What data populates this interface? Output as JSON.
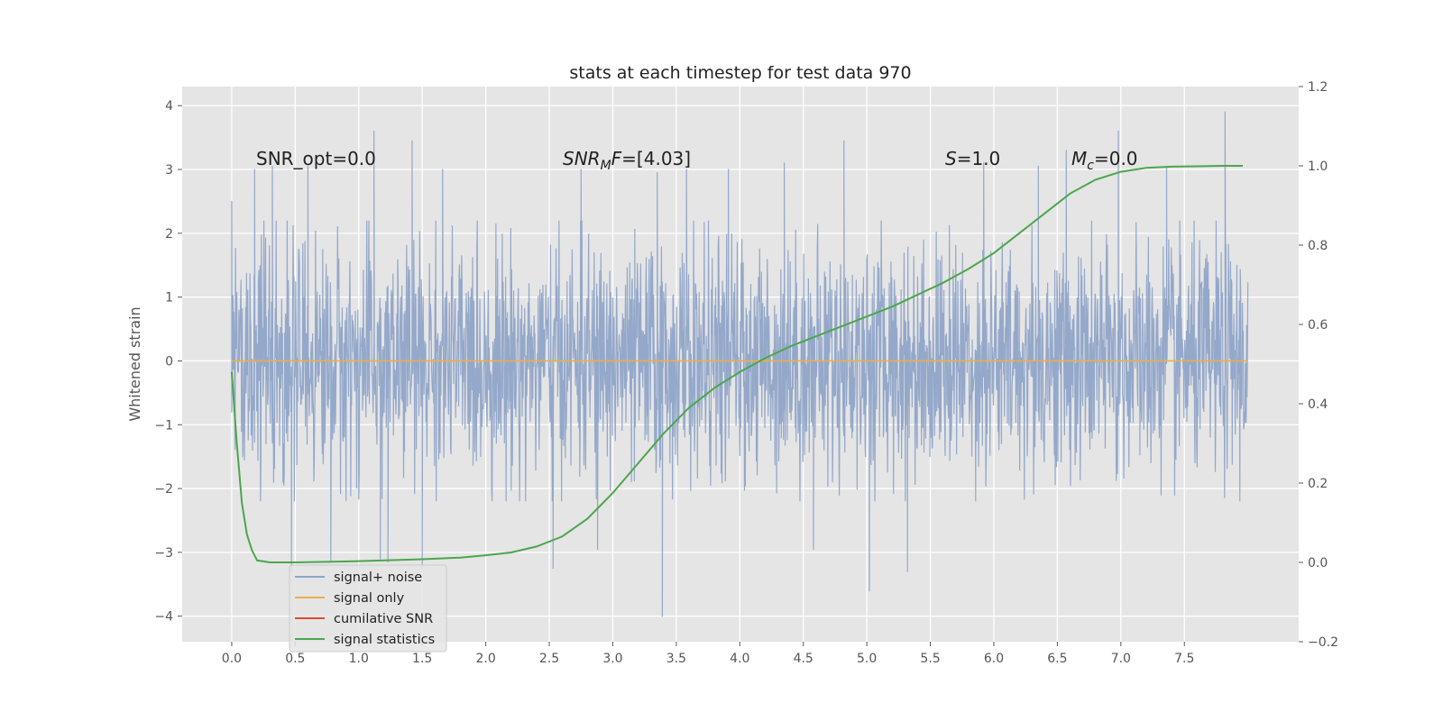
{
  "chart_data": {
    "type": "line",
    "title": "stats at each timestep for test data 970",
    "xlabel": "",
    "ylabel": "Whitened strain",
    "y2label": "",
    "xlim": [
      -0.39,
      8.4
    ],
    "ylim": [
      -4.4,
      4.3
    ],
    "y2lim": [
      -0.2,
      1.2
    ],
    "x_ticks": [
      0.0,
      0.5,
      1.0,
      1.5,
      2.0,
      2.5,
      3.0,
      3.5,
      4.0,
      4.5,
      5.0,
      5.5,
      6.0,
      6.5,
      7.0,
      7.5
    ],
    "x_tick_labels": [
      "0.0",
      "0.5",
      "1.0",
      "1.5",
      "2.0",
      "2.5",
      "3.0",
      "3.5",
      "4.0",
      "4.5",
      "5.0",
      "5.5",
      "6.0",
      "6.5",
      "7.0",
      "7.5"
    ],
    "y_ticks": [
      -4,
      -3,
      -2,
      -1,
      0,
      1,
      2,
      3,
      4
    ],
    "y_tick_labels": [
      "−4",
      "−3",
      "−2",
      "−1",
      "0",
      "1",
      "2",
      "3",
      "4"
    ],
    "y2_ticks": [
      -0.2,
      0.0,
      0.2,
      0.4,
      0.6,
      0.8,
      1.0,
      1.2
    ],
    "y2_tick_labels": [
      "−0.2",
      "0.0",
      "0.2",
      "0.4",
      "0.6",
      "0.8",
      "1.0",
      "1.2"
    ],
    "grid": true,
    "background": "#e5e5e5",
    "legend_position": "lower-left",
    "annotations": {
      "snr_opt": "SNR_opt=0.0",
      "snr_mf_sym": "SNR",
      "snr_mf_sub": "M",
      "snr_mf_sym2": "F",
      "snr_mf_val": "=[4.03]",
      "s_sym": "S",
      "s_val": "=1.0",
      "mc_sym": "M",
      "mc_sub": "c",
      "mc_val": "=0.0"
    },
    "series": [
      {
        "name": "signal+ noise",
        "axis": "left",
        "color": "#8fa4c8",
        "style": "noise",
        "x_range": [
          0.0,
          8.0
        ],
        "envelope_abs": 2.2,
        "x_peaks": [
          0.0,
          0.18,
          0.32,
          0.47,
          0.6,
          0.78,
          1.12,
          1.17,
          1.23,
          1.42,
          1.5,
          1.66,
          2.53,
          2.75,
          2.88,
          3.35,
          3.39,
          3.58,
          3.91,
          4.35,
          4.58,
          4.82,
          5.02,
          5.32,
          5.92,
          6.35,
          6.57,
          6.98,
          7.36,
          7.82
        ],
        "y_peaks": [
          2.5,
          3.0,
          3.05,
          -3.3,
          3.05,
          -3.15,
          3.6,
          -3.1,
          -3.15,
          3.45,
          -3.25,
          3.0,
          -3.25,
          3.0,
          -2.95,
          2.95,
          -4.0,
          3.0,
          3.0,
          3.1,
          -2.95,
          3.45,
          -3.6,
          -3.3,
          3.1,
          3.05,
          3.3,
          3.6,
          3.05,
          3.9
        ]
      },
      {
        "name": "signal only",
        "axis": "left",
        "color": "#e8b04b",
        "x": [
          0.0,
          8.0
        ],
        "y": [
          0.0,
          0.0
        ]
      },
      {
        "name": "cumilative SNR",
        "axis": "left",
        "color": "#e24a33",
        "x": [],
        "y": []
      },
      {
        "name": "signal statistics",
        "axis": "right",
        "color": "#4ca64c",
        "x": [
          0.0,
          0.04,
          0.08,
          0.12,
          0.16,
          0.2,
          0.3,
          0.5,
          1.0,
          1.5,
          1.8,
          2.0,
          2.2,
          2.4,
          2.6,
          2.8,
          3.0,
          3.2,
          3.4,
          3.6,
          3.8,
          4.0,
          4.2,
          4.4,
          4.6,
          4.8,
          5.0,
          5.2,
          5.4,
          5.6,
          5.8,
          6.0,
          6.2,
          6.4,
          6.6,
          6.8,
          7.0,
          7.2,
          7.4,
          7.6,
          7.8,
          7.96
        ],
        "y": [
          0.48,
          0.3,
          0.15,
          0.07,
          0.03,
          0.005,
          0.0,
          0.0,
          0.003,
          0.008,
          0.012,
          0.018,
          0.025,
          0.04,
          0.065,
          0.11,
          0.175,
          0.25,
          0.325,
          0.39,
          0.44,
          0.48,
          0.515,
          0.545,
          0.57,
          0.595,
          0.62,
          0.645,
          0.675,
          0.705,
          0.74,
          0.78,
          0.83,
          0.88,
          0.93,
          0.965,
          0.985,
          0.995,
          0.998,
          0.999,
          1.0,
          1.0
        ]
      }
    ]
  }
}
